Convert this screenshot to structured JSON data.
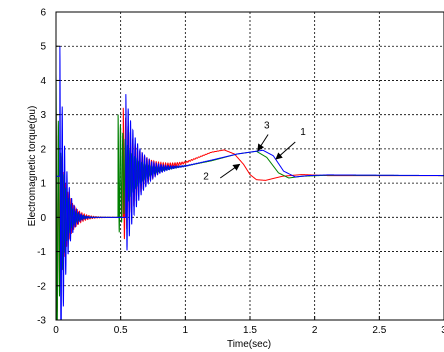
{
  "chart_data": {
    "type": "line",
    "title": "",
    "xlabel": "Time(sec)",
    "ylabel": "Electromagnetic torque(pu)",
    "xlim": [
      0,
      3
    ],
    "ylim": [
      -3,
      6
    ],
    "xticks": [
      0,
      0.5,
      1,
      1.5,
      2,
      2.5,
      3
    ],
    "xtick_labels": [
      "0",
      "0.5",
      "1",
      "1.5",
      "2",
      "2.5",
      "3"
    ],
    "yticks": [
      -3,
      -2,
      -1,
      0,
      1,
      2,
      3,
      4,
      5,
      6
    ],
    "ytick_labels": [
      "-3",
      "-2",
      "-1",
      "0",
      "1",
      "2",
      "3",
      "4",
      "5",
      "6"
    ],
    "grid": true,
    "series": [
      {
        "color": "#ff0000",
        "events": [
          {
            "t": 0.0,
            "amp": 3.2,
            "base0": 0.0,
            "decay": 16
          },
          {
            "t": 0.52,
            "amp": 2.0,
            "base0": 1.2,
            "decay": 9
          }
        ],
        "trend": [
          [
            0.52,
            1.2
          ],
          [
            0.8,
            1.45
          ],
          [
            1.0,
            1.6
          ],
          [
            1.2,
            1.9
          ],
          [
            1.3,
            1.97
          ],
          [
            1.38,
            1.85
          ],
          [
            1.45,
            1.55
          ],
          [
            1.5,
            1.25
          ],
          [
            1.55,
            1.1
          ],
          [
            1.62,
            1.08
          ],
          [
            1.75,
            1.2
          ],
          [
            1.9,
            1.25
          ],
          [
            2.1,
            1.22
          ],
          [
            3.0,
            1.22
          ]
        ]
      },
      {
        "color": "#008000",
        "events": [
          {
            "t": 0.0,
            "amp": 4.2,
            "base0": 0.0,
            "decay": 22
          },
          {
            "t": 0.48,
            "amp": 1.8,
            "base0": 1.2,
            "decay": 10
          }
        ],
        "trend": [
          [
            0.48,
            1.2
          ],
          [
            0.8,
            1.4
          ],
          [
            1.0,
            1.5
          ],
          [
            1.2,
            1.65
          ],
          [
            1.4,
            1.85
          ],
          [
            1.55,
            1.93
          ],
          [
            1.63,
            1.75
          ],
          [
            1.72,
            1.3
          ],
          [
            1.8,
            1.15
          ],
          [
            1.9,
            1.2
          ],
          [
            2.1,
            1.23
          ],
          [
            3.0,
            1.22
          ]
        ]
      },
      {
        "color": "#0000ff",
        "events": [
          {
            "t": 0.03,
            "amp": 5.0,
            "base0": 0.0,
            "decay": 24
          },
          {
            "t": 0.54,
            "amp": 2.4,
            "base0": 1.2,
            "decay": 11
          }
        ],
        "trend": [
          [
            0.54,
            1.2
          ],
          [
            0.8,
            1.42
          ],
          [
            1.0,
            1.5
          ],
          [
            1.2,
            1.67
          ],
          [
            1.4,
            1.85
          ],
          [
            1.6,
            1.96
          ],
          [
            1.68,
            1.8
          ],
          [
            1.76,
            1.35
          ],
          [
            1.85,
            1.18
          ],
          [
            1.95,
            1.22
          ],
          [
            2.1,
            1.24
          ],
          [
            3.0,
            1.22
          ]
        ]
      }
    ],
    "annotations": [
      {
        "label": "1",
        "text_x": 1.91,
        "text_y": 2.4,
        "arrow_from": [
          1.85,
          2.2
        ],
        "arrow_to": [
          1.7,
          1.7
        ]
      },
      {
        "label": "2",
        "text_x": 1.16,
        "text_y": 1.1,
        "arrow_from": [
          1.27,
          1.15
        ],
        "arrow_to": [
          1.42,
          1.55
        ]
      },
      {
        "label": "3",
        "text_x": 1.63,
        "text_y": 2.6,
        "arrow_from": [
          1.64,
          2.42
        ],
        "arrow_to": [
          1.56,
          1.95
        ]
      }
    ]
  }
}
